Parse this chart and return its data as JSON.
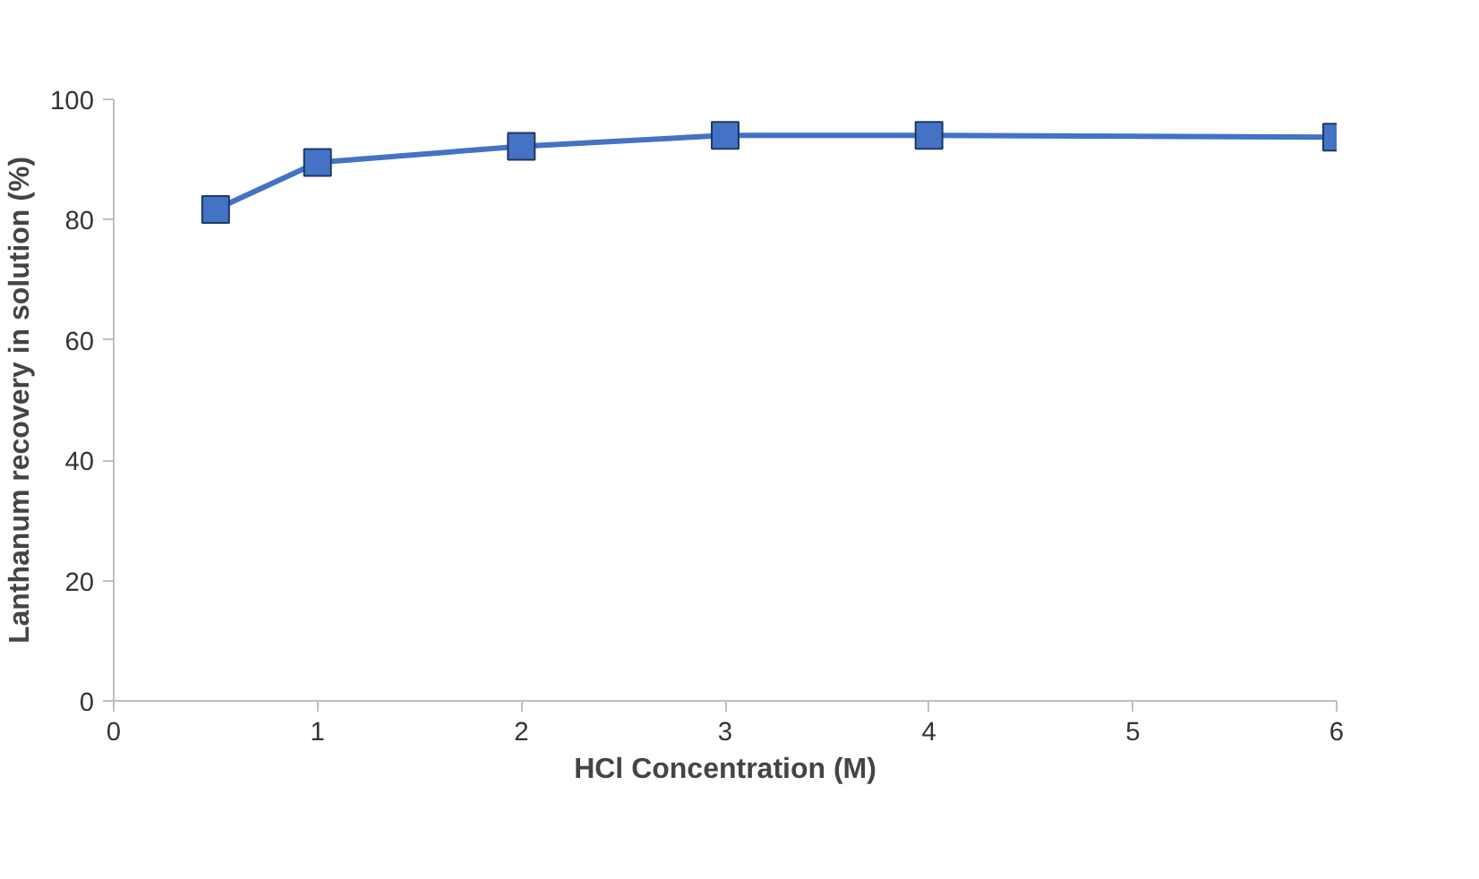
{
  "chart_data": {
    "type": "line",
    "xlabel": "HCl Concentration (M)",
    "ylabel": "Lanthanum recovery in solution (%)",
    "x": [
      0.5,
      1,
      2,
      3,
      4,
      6
    ],
    "series": [
      {
        "color": "#4472c4",
        "values": [
          81.7,
          89.5,
          92.2,
          94.0,
          94.0,
          93.7
        ]
      }
    ],
    "xlim": [
      0,
      6
    ],
    "xticks": [
      0,
      1,
      2,
      3,
      4,
      5,
      6
    ],
    "ylim": [
      0,
      100
    ],
    "yticks": [
      0,
      20,
      40,
      60,
      80,
      100
    ],
    "marker": "square",
    "line_style": "solid"
  }
}
